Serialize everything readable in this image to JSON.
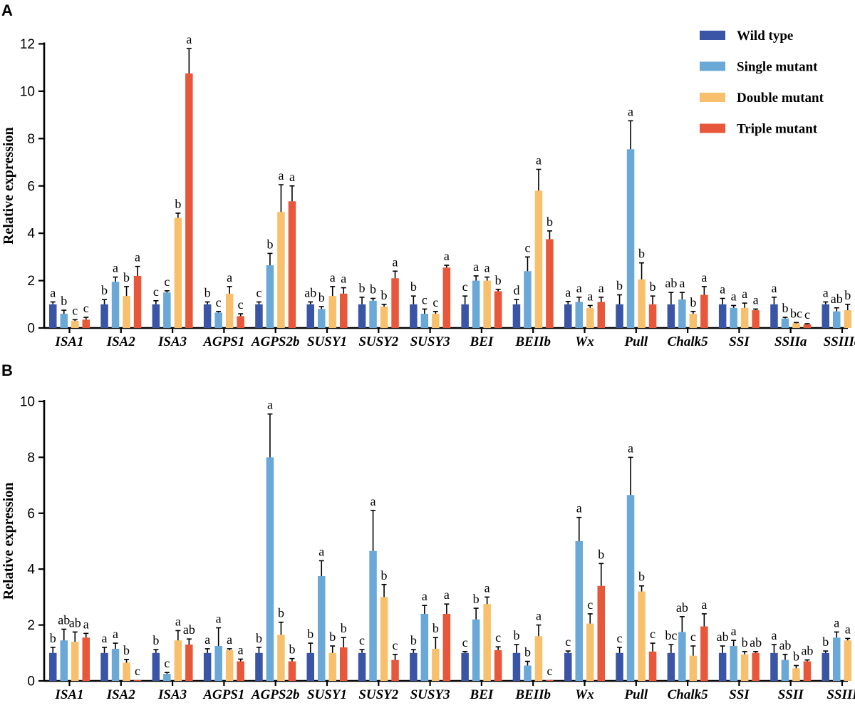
{
  "colors": {
    "Wild type": "#3a55a6",
    "Single mutant": "#6aa8d8",
    "Double mutant": "#f8c06c",
    "Triple mutant": "#e8573a"
  },
  "legend": [
    "Wild type",
    "Single mutant",
    "Double mutant",
    "Triple mutant"
  ],
  "chart_data": [
    {
      "panel": "A",
      "type": "bar",
      "ylabel": "Relative expression",
      "ylim": [
        0,
        12
      ],
      "yticks": [
        "0",
        "2",
        "4",
        "6",
        "8",
        "10",
        "12"
      ],
      "categories": [
        "ISA1",
        "ISA2",
        "ISA3",
        "AGPS1",
        "AGPS2b",
        "SUSY1",
        "SUSY2",
        "SUSY3",
        "BEI",
        "BEIIb",
        "Wx",
        "Pull",
        "Chalk5",
        "SSI",
        "SSIIa",
        "SSIIIa"
      ],
      "series": [
        {
          "name": "Wild type",
          "values": [
            1.0,
            1.0,
            1.0,
            1.0,
            1.0,
            1.0,
            1.0,
            1.0,
            1.0,
            1.0,
            1.0,
            1.0,
            1.0,
            1.0,
            1.0,
            1.0
          ],
          "errors": [
            0.1,
            0.2,
            0.15,
            0.1,
            0.1,
            0.1,
            0.3,
            0.35,
            0.35,
            0.2,
            0.12,
            0.4,
            0.5,
            0.25,
            0.3,
            0.1
          ],
          "labels": [
            "a",
            "b",
            "c",
            "b",
            "c",
            "ab",
            "b",
            "b",
            "c",
            "d",
            "a",
            "b",
            "ab",
            "a",
            "a",
            "a"
          ]
        },
        {
          "name": "Single mutant",
          "values": [
            0.6,
            1.95,
            1.5,
            0.65,
            2.65,
            0.8,
            1.15,
            0.6,
            2.0,
            2.4,
            1.1,
            7.55,
            1.2,
            0.85,
            0.4,
            0.7
          ],
          "errors": [
            0.15,
            0.2,
            0.07,
            0.05,
            0.5,
            0.1,
            0.1,
            0.2,
            0.2,
            0.6,
            0.2,
            1.2,
            0.3,
            0.1,
            0.05,
            0.15
          ],
          "labels": [
            "b",
            "a",
            "c",
            "c",
            "b",
            "b",
            "b",
            "c",
            "a",
            "c",
            "a",
            "a",
            "a",
            "a",
            "b",
            "ab"
          ]
        },
        {
          "name": "Double mutant",
          "values": [
            0.3,
            1.35,
            4.65,
            1.45,
            4.9,
            1.35,
            0.9,
            0.6,
            2.0,
            5.8,
            0.85,
            2.05,
            0.6,
            0.85,
            0.2,
            0.75
          ],
          "errors": [
            0.05,
            0.4,
            0.2,
            0.3,
            1.15,
            0.4,
            0.1,
            0.1,
            0.15,
            0.9,
            0.1,
            0.7,
            0.1,
            0.2,
            0.03,
            0.25
          ],
          "labels": [
            "c",
            "b",
            "b",
            "a",
            "a",
            "a",
            "b",
            "c",
            "a",
            "a",
            "a",
            "b",
            "b",
            "a",
            "bc",
            "b"
          ]
        },
        {
          "name": "Triple mutant",
          "values": [
            0.35,
            2.2,
            10.75,
            0.5,
            5.35,
            1.45,
            2.1,
            2.55,
            1.55,
            3.75,
            1.1,
            1.0,
            1.4,
            0.75,
            0.15,
            0.02
          ],
          "errors": [
            0.1,
            0.4,
            1.05,
            0.1,
            0.65,
            0.25,
            0.3,
            0.1,
            0.08,
            0.35,
            0.2,
            0.35,
            0.35,
            0.05,
            0.03,
            0.0
          ],
          "labels": [
            "c",
            "a",
            "a",
            "c",
            "a",
            "a",
            "a",
            "a",
            "b",
            "b",
            "a",
            "b",
            "a",
            "a",
            "c",
            "c"
          ]
        }
      ]
    },
    {
      "panel": "B",
      "type": "bar",
      "ylabel": "Relative expression",
      "ylim": [
        0,
        10
      ],
      "yticks": [
        "0",
        "2",
        "4",
        "6",
        "8",
        "10"
      ],
      "categories": [
        "ISA1",
        "ISA2",
        "ISA3",
        "AGPS1",
        "AGPS2b",
        "SUSY1",
        "SUSY2",
        "SUSY3",
        "BEI",
        "BEIIb",
        "Wx",
        "Pull",
        "Chalk5",
        "SSI",
        "SSII",
        "SSIII"
      ],
      "series": [
        {
          "name": "Wild type",
          "values": [
            1.0,
            1.0,
            1.0,
            1.0,
            1.0,
            1.0,
            1.0,
            1.0,
            1.0,
            1.0,
            1.0,
            1.0,
            1.0,
            1.0,
            1.0,
            1.0
          ],
          "errors": [
            0.2,
            0.2,
            0.12,
            0.15,
            0.2,
            0.35,
            0.12,
            0.12,
            0.05,
            0.3,
            0.07,
            0.2,
            0.3,
            0.25,
            0.3,
            0.07
          ],
          "labels": [
            "b",
            "a",
            "b",
            "a",
            "b",
            "b",
            "c",
            "b",
            "c",
            "b",
            "c",
            "c",
            "bc",
            "ab",
            "a",
            "b"
          ]
        },
        {
          "name": "Single mutant",
          "values": [
            1.45,
            1.15,
            0.25,
            1.25,
            8.0,
            3.75,
            4.65,
            2.4,
            2.2,
            0.55,
            5.0,
            6.65,
            1.75,
            1.25,
            0.75,
            1.55
          ],
          "errors": [
            0.4,
            0.2,
            0.05,
            0.65,
            1.55,
            0.55,
            1.45,
            0.3,
            0.4,
            0.15,
            0.85,
            1.35,
            0.55,
            0.2,
            0.2,
            0.2
          ],
          "labels": [
            "ab",
            "a",
            "c",
            "a",
            "a",
            "a",
            "a",
            "a",
            "b",
            "b",
            "a",
            "a",
            "ab",
            "a",
            "ab",
            "a"
          ]
        },
        {
          "name": "Double mutant",
          "values": [
            1.4,
            0.65,
            1.45,
            1.1,
            1.65,
            1.0,
            3.0,
            1.15,
            2.75,
            1.6,
            2.05,
            3.2,
            0.9,
            0.95,
            0.45,
            1.45
          ],
          "errors": [
            0.35,
            0.12,
            0.35,
            0.05,
            0.45,
            0.25,
            0.45,
            0.4,
            0.25,
            0.4,
            0.35,
            0.2,
            0.35,
            0.1,
            0.1,
            0.07
          ],
          "labels": [
            "ab",
            "b",
            "a",
            "a",
            "b",
            "b",
            "b",
            "b",
            "a",
            "a",
            "c",
            "b",
            "c",
            "b",
            "b",
            "a"
          ]
        },
        {
          "name": "Triple mutant",
          "values": [
            1.55,
            0.02,
            1.3,
            0.7,
            0.7,
            1.2,
            0.75,
            2.4,
            1.1,
            0.02,
            3.4,
            1.05,
            1.95,
            1.0,
            0.7,
            1.45
          ],
          "errors": [
            0.15,
            0.0,
            0.2,
            0.08,
            0.1,
            0.35,
            0.2,
            0.35,
            0.12,
            0.0,
            0.8,
            0.3,
            0.45,
            0.05,
            0.05,
            0.1
          ],
          "labels": [
            "a",
            "c",
            "ab",
            "a",
            "b",
            "b",
            "c",
            "a",
            "c",
            "c",
            "b",
            "c",
            "a",
            "ab",
            "ab",
            "a"
          ]
        }
      ]
    }
  ]
}
